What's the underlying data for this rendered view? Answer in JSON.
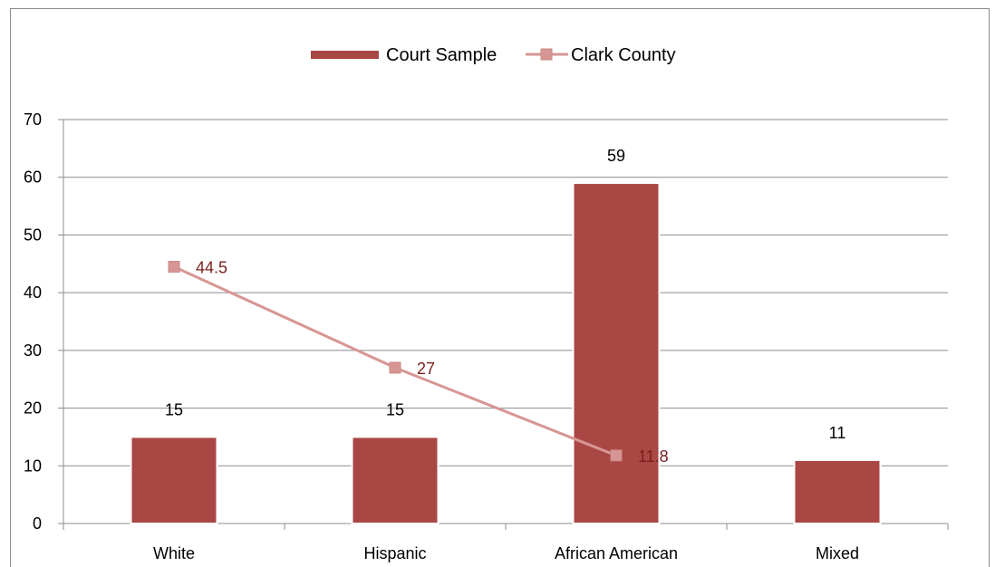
{
  "chart_data": {
    "type": "bar",
    "title": "",
    "xlabel": "",
    "ylabel": "",
    "categories": [
      "White",
      "Hispanic",
      "African American",
      "Mixed"
    ],
    "ylim": [
      0,
      70
    ],
    "yticks": [
      0,
      10,
      20,
      30,
      40,
      50,
      60,
      70
    ],
    "grid": true,
    "legend": "top-center",
    "series": [
      {
        "name": "Court Sample",
        "kind": "bar",
        "values": [
          15,
          15,
          59,
          11
        ],
        "labels": [
          "15",
          "15",
          "59",
          "11"
        ],
        "color": "#a94744"
      },
      {
        "name": "Clark County",
        "kind": "line",
        "values": [
          44.5,
          27,
          11.8,
          null
        ],
        "labels": [
          "44.5",
          "27",
          "11.8",
          ""
        ],
        "color": "#d79693",
        "label_color": "#7a1f1c"
      }
    ]
  }
}
